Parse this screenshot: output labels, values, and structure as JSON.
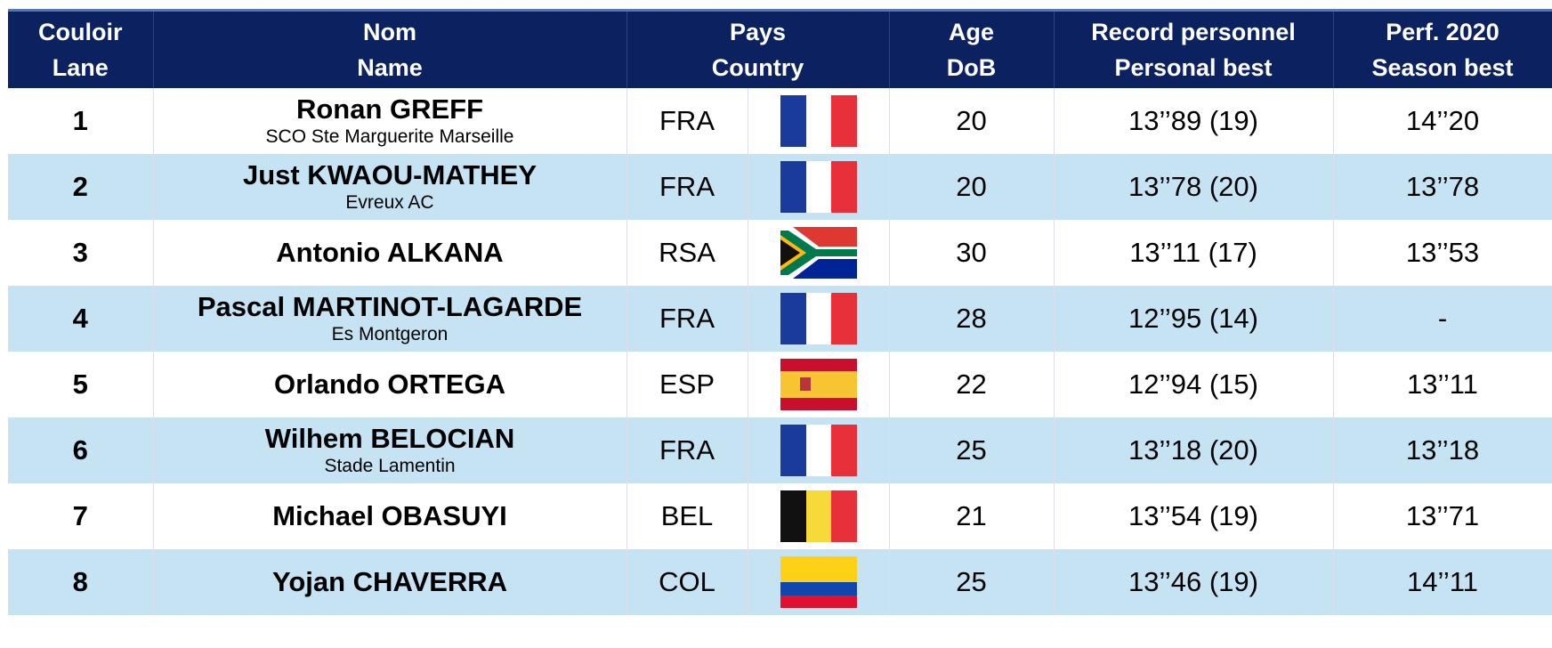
{
  "table": {
    "header": [
      [
        "Couloir",
        "Lane"
      ],
      [
        "Nom",
        "Name"
      ],
      [
        "Pays",
        "Country"
      ],
      [
        "Age",
        "DoB"
      ],
      [
        "Record personnel",
        "Personal best"
      ],
      [
        "Perf. 2020",
        "Season best"
      ]
    ],
    "rows": [
      {
        "lane": "1",
        "name": "Ronan GREFF",
        "club": "SCO Ste Marguerite Marseille",
        "country": "FRA",
        "age": "20",
        "pb": "13’’89 (19)",
        "sb": "14’’20"
      },
      {
        "lane": "2",
        "name": "Just KWAOU-MATHEY",
        "club": "Evreux AC",
        "country": "FRA",
        "age": "20",
        "pb": "13’’78 (20)",
        "sb": "13’’78"
      },
      {
        "lane": "3",
        "name": "Antonio ALKANA",
        "country": "RSA",
        "age": "30",
        "pb": "13’’11 (17)",
        "sb": "13’’53"
      },
      {
        "lane": "4",
        "name": "Pascal MARTINOT-LAGARDE",
        "club": "Es Montgeron",
        "country": "FRA",
        "age": "28",
        "pb": "12’’95 (14)",
        "sb": "-"
      },
      {
        "lane": "5",
        "name": "Orlando ORTEGA",
        "country": "ESP",
        "age": "22",
        "pb": "12’’94 (15)",
        "sb": "13’’11"
      },
      {
        "lane": "6",
        "name": "Wilhem BELOCIAN",
        "club": "Stade Lamentin",
        "country": "FRA",
        "age": "25",
        "pb": "13’’18 (20)",
        "sb": "13’’18"
      },
      {
        "lane": "7",
        "name": "Michael OBASUYI",
        "country": "BEL",
        "age": "21",
        "pb": "13’’54 (19)",
        "sb": "13’’71"
      },
      {
        "lane": "8",
        "name": "Yojan CHAVERRA",
        "country": "COL",
        "age": "25",
        "pb": "13’’46 (19)",
        "sb": "14’’11"
      }
    ]
  }
}
